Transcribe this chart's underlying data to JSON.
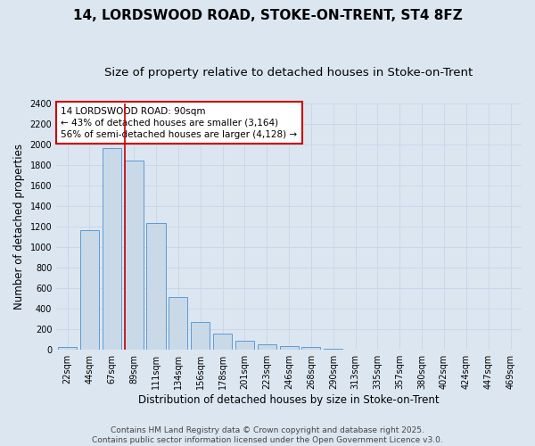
{
  "title": "14, LORDSWOOD ROAD, STOKE-ON-TRENT, ST4 8FZ",
  "subtitle": "Size of property relative to detached houses in Stoke-on-Trent",
  "xlabel": "Distribution of detached houses by size in Stoke-on-Trent",
  "ylabel": "Number of detached properties",
  "bar_labels": [
    "22sqm",
    "44sqm",
    "67sqm",
    "89sqm",
    "111sqm",
    "134sqm",
    "156sqm",
    "178sqm",
    "201sqm",
    "223sqm",
    "246sqm",
    "268sqm",
    "290sqm",
    "313sqm",
    "335sqm",
    "357sqm",
    "380sqm",
    "402sqm",
    "424sqm",
    "447sqm",
    "469sqm"
  ],
  "bar_values": [
    25,
    1160,
    1960,
    1840,
    1230,
    510,
    275,
    155,
    90,
    50,
    35,
    30,
    10,
    5,
    3,
    2,
    2,
    1,
    1,
    1,
    1
  ],
  "bar_color": "#c9d9e8",
  "bar_edge_color": "#5b9bd5",
  "grid_color": "#c8d8ea",
  "background_color": "#dce6f1",
  "ylim": [
    0,
    2400
  ],
  "yticks": [
    0,
    200,
    400,
    600,
    800,
    1000,
    1200,
    1400,
    1600,
    1800,
    2000,
    2200,
    2400
  ],
  "vline_x_index": 3,
  "vline_color": "#cc0000",
  "annotation_text": "14 LORDSWOOD ROAD: 90sqm\n← 43% of detached houses are smaller (3,164)\n56% of semi-detached houses are larger (4,128) →",
  "annotation_box_color": "#ffffff",
  "annotation_box_edge": "#cc0000",
  "footer_text": "Contains HM Land Registry data © Crown copyright and database right 2025.\nContains public sector information licensed under the Open Government Licence v3.0.",
  "title_fontsize": 11,
  "subtitle_fontsize": 9.5,
  "axis_label_fontsize": 8.5,
  "tick_fontsize": 7,
  "annotation_fontsize": 7.5,
  "footer_fontsize": 6.5
}
